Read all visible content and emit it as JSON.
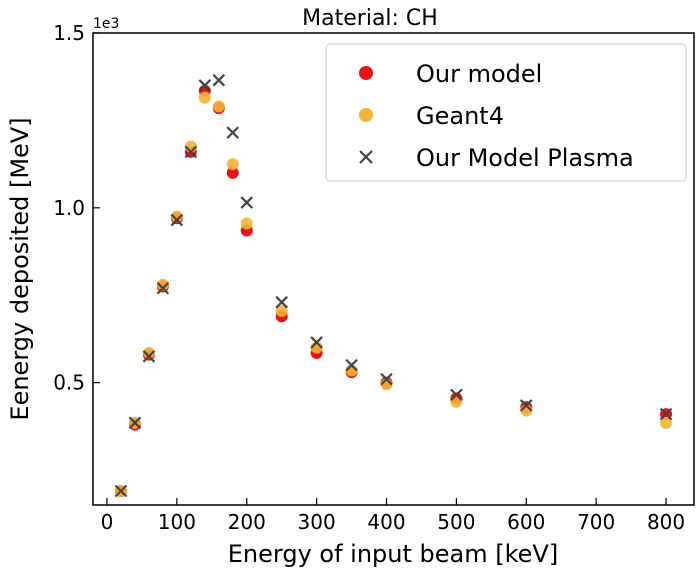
{
  "chart_data": {
    "type": "scatter",
    "title": "Material: CH",
    "xlabel": "Energy of input beam [keV]",
    "ylabel": "Eenergy deposited [MeV]",
    "y_multiplier_label": "1e3",
    "xlim": [
      -20,
      840
    ],
    "ylim": [
      0.15,
      1.5
    ],
    "xticks": [
      0,
      100,
      200,
      300,
      400,
      500,
      600,
      700,
      800
    ],
    "xtick_labels": [
      "0",
      "100",
      "200",
      "300",
      "400",
      "500",
      "600",
      "700",
      "800"
    ],
    "yticks": [
      0.5,
      1.0,
      1.5
    ],
    "ytick_labels": [
      "0.5",
      "1.0",
      "1.5"
    ],
    "grid": false,
    "legend_position": "top-right",
    "series": [
      {
        "name": "Our model",
        "marker": "circle",
        "color": "#ee1111",
        "x": [
          20,
          40,
          60,
          80,
          100,
          120,
          140,
          160,
          180,
          200,
          250,
          300,
          350,
          400,
          500,
          600,
          800
        ],
        "y": [
          0.19,
          0.38,
          0.58,
          0.775,
          0.97,
          1.16,
          1.335,
          1.285,
          1.1,
          0.935,
          0.69,
          0.585,
          0.53,
          0.5,
          0.455,
          0.43,
          0.41
        ]
      },
      {
        "name": "Geant4",
        "marker": "circle",
        "color": "#f5b335",
        "x": [
          20,
          40,
          60,
          80,
          100,
          120,
          140,
          160,
          180,
          200,
          250,
          300,
          350,
          400,
          500,
          600,
          800
        ],
        "y": [
          0.19,
          0.385,
          0.585,
          0.78,
          0.975,
          1.175,
          1.315,
          1.29,
          1.125,
          0.955,
          0.705,
          0.6,
          0.535,
          0.495,
          0.445,
          0.42,
          0.385
        ]
      },
      {
        "name": "Our Model Plasma",
        "marker": "x",
        "color": "#444444",
        "x": [
          20,
          40,
          60,
          80,
          100,
          120,
          140,
          160,
          180,
          200,
          250,
          300,
          350,
          400,
          500,
          600,
          800
        ],
        "y": [
          0.19,
          0.385,
          0.575,
          0.77,
          0.965,
          1.16,
          1.35,
          1.365,
          1.215,
          1.015,
          0.73,
          0.615,
          0.55,
          0.51,
          0.465,
          0.435,
          0.41
        ]
      }
    ]
  }
}
